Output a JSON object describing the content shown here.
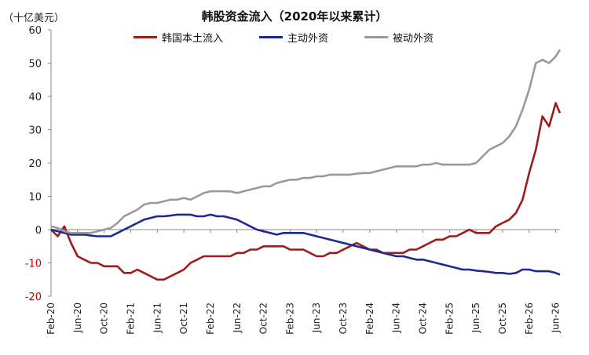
{
  "chart_data": {
    "type": "line",
    "title": "韩股资金流入（2020年以来累计）",
    "unit_label": "（十亿美元）",
    "ylim": [
      -20,
      60
    ],
    "yticks": [
      60,
      50,
      40,
      30,
      20,
      10,
      0,
      -10,
      -20
    ],
    "x_tick_labels": [
      "Feb-20",
      "Jun-20",
      "Oct-20",
      "Feb-21",
      "Jun-21",
      "Oct-21",
      "Feb-22",
      "Jun-22",
      "Oct-22",
      "Feb-23",
      "Jun-23",
      "Oct-23",
      "Feb-24",
      "Jun-24",
      "Oct-24",
      "Feb-25",
      "Jun-25",
      "Oct-25",
      "Feb-26",
      "Jun-26"
    ],
    "legend_position": "top",
    "grid": false,
    "series": [
      {
        "name": "韩国本土流入",
        "color": "#9e1b1b",
        "points": [
          [
            "2020-02",
            0
          ],
          [
            "2020-03",
            -2
          ],
          [
            "2020-04",
            1
          ],
          [
            "2020-05",
            -4
          ],
          [
            "2020-06",
            -8
          ],
          [
            "2020-07",
            -9
          ],
          [
            "2020-08",
            -10
          ],
          [
            "2020-09",
            -10
          ],
          [
            "2020-10",
            -11
          ],
          [
            "2020-11",
            -11
          ],
          [
            "2020-12",
            -11
          ],
          [
            "2021-01",
            -13
          ],
          [
            "2021-02",
            -13
          ],
          [
            "2021-03",
            -12
          ],
          [
            "2021-04",
            -13
          ],
          [
            "2021-05",
            -14
          ],
          [
            "2021-06",
            -15
          ],
          [
            "2021-07",
            -15
          ],
          [
            "2021-08",
            -14
          ],
          [
            "2021-09",
            -13
          ],
          [
            "2021-10",
            -12
          ],
          [
            "2021-11",
            -10
          ],
          [
            "2021-12",
            -9
          ],
          [
            "2022-01",
            -8
          ],
          [
            "2022-02",
            -8
          ],
          [
            "2022-03",
            -8
          ],
          [
            "2022-04",
            -8
          ],
          [
            "2022-05",
            -8
          ],
          [
            "2022-06",
            -7
          ],
          [
            "2022-07",
            -7
          ],
          [
            "2022-08",
            -6
          ],
          [
            "2022-09",
            -6
          ],
          [
            "2022-10",
            -5
          ],
          [
            "2022-11",
            -5
          ],
          [
            "2022-12",
            -5
          ],
          [
            "2023-01",
            -5
          ],
          [
            "2023-02",
            -6
          ],
          [
            "2023-03",
            -6
          ],
          [
            "2023-04",
            -6
          ],
          [
            "2023-05",
            -7
          ],
          [
            "2023-06",
            -8
          ],
          [
            "2023-07",
            -8
          ],
          [
            "2023-08",
            -7
          ],
          [
            "2023-09",
            -7
          ],
          [
            "2023-10",
            -6
          ],
          [
            "2023-11",
            -5
          ],
          [
            "2023-12",
            -4
          ],
          [
            "2024-01",
            -5
          ],
          [
            "2024-02",
            -6
          ],
          [
            "2024-03",
            -6
          ],
          [
            "2024-04",
            -7
          ],
          [
            "2024-05",
            -7
          ],
          [
            "2024-06",
            -7
          ],
          [
            "2024-07",
            -7
          ],
          [
            "2024-08",
            -6
          ],
          [
            "2024-09",
            -6
          ],
          [
            "2024-10",
            -5
          ],
          [
            "2024-11",
            -4
          ],
          [
            "2024-12",
            -3
          ],
          [
            "2025-01",
            -3
          ],
          [
            "2025-02",
            -2
          ],
          [
            "2025-03",
            -2
          ],
          [
            "2025-04",
            -1
          ],
          [
            "2025-05",
            0
          ],
          [
            "2025-06",
            -1
          ],
          [
            "2025-07",
            -1
          ],
          [
            "2025-08",
            -1
          ],
          [
            "2025-09",
            1
          ],
          [
            "2025-10",
            2
          ],
          [
            "2025-11",
            3
          ],
          [
            "2025-12",
            5
          ],
          [
            "2026-01",
            9
          ],
          [
            "2026-02",
            17
          ],
          [
            "2026-03",
            24
          ],
          [
            "2026-04",
            34
          ],
          [
            "2026-05",
            31
          ],
          [
            "2026-06",
            38
          ],
          [
            "2026-06-20",
            35
          ]
        ]
      },
      {
        "name": "主动外资",
        "color": "#1c2a8f",
        "points": [
          [
            "2020-02",
            0
          ],
          [
            "2020-03",
            -0.5
          ],
          [
            "2020-04",
            -1
          ],
          [
            "2020-05",
            -1.5
          ],
          [
            "2020-06",
            -1.5
          ],
          [
            "2020-07",
            -1.5
          ],
          [
            "2020-08",
            -1.8
          ],
          [
            "2020-09",
            -2
          ],
          [
            "2020-10",
            -2
          ],
          [
            "2020-11",
            -2
          ],
          [
            "2020-12",
            -1
          ],
          [
            "2021-01",
            0
          ],
          [
            "2021-02",
            1
          ],
          [
            "2021-03",
            2
          ],
          [
            "2021-04",
            3
          ],
          [
            "2021-05",
            3.5
          ],
          [
            "2021-06",
            4
          ],
          [
            "2021-07",
            4
          ],
          [
            "2021-08",
            4.2
          ],
          [
            "2021-09",
            4.5
          ],
          [
            "2021-10",
            4.5
          ],
          [
            "2021-11",
            4.5
          ],
          [
            "2021-12",
            4
          ],
          [
            "2022-01",
            4
          ],
          [
            "2022-02",
            4.5
          ],
          [
            "2022-03",
            4
          ],
          [
            "2022-04",
            4
          ],
          [
            "2022-05",
            3.5
          ],
          [
            "2022-06",
            3
          ],
          [
            "2022-07",
            2
          ],
          [
            "2022-08",
            1
          ],
          [
            "2022-09",
            0
          ],
          [
            "2022-10",
            -0.5
          ],
          [
            "2022-11",
            -1
          ],
          [
            "2022-12",
            -1.5
          ],
          [
            "2023-01",
            -1
          ],
          [
            "2023-02",
            -1
          ],
          [
            "2023-03",
            -1
          ],
          [
            "2023-04",
            -1
          ],
          [
            "2023-05",
            -1.5
          ],
          [
            "2023-06",
            -2
          ],
          [
            "2023-07",
            -2.5
          ],
          [
            "2023-08",
            -3
          ],
          [
            "2023-09",
            -3.5
          ],
          [
            "2023-10",
            -4
          ],
          [
            "2023-11",
            -4.5
          ],
          [
            "2023-12",
            -5
          ],
          [
            "2024-01",
            -5.5
          ],
          [
            "2024-02",
            -6
          ],
          [
            "2024-03",
            -6.5
          ],
          [
            "2024-04",
            -7
          ],
          [
            "2024-05",
            -7.5
          ],
          [
            "2024-06",
            -8
          ],
          [
            "2024-07",
            -8
          ],
          [
            "2024-08",
            -8.5
          ],
          [
            "2024-09",
            -9
          ],
          [
            "2024-10",
            -9
          ],
          [
            "2024-11",
            -9.5
          ],
          [
            "2024-12",
            -10
          ],
          [
            "2025-01",
            -10.5
          ],
          [
            "2025-02",
            -11
          ],
          [
            "2025-03",
            -11.5
          ],
          [
            "2025-04",
            -12
          ],
          [
            "2025-05",
            -12
          ],
          [
            "2025-06",
            -12.3
          ],
          [
            "2025-07",
            -12.5
          ],
          [
            "2025-08",
            -12.7
          ],
          [
            "2025-09",
            -13
          ],
          [
            "2025-10",
            -13
          ],
          [
            "2025-11",
            -13.3
          ],
          [
            "2025-12",
            -13
          ],
          [
            "2026-01",
            -12
          ],
          [
            "2026-02",
            -12
          ],
          [
            "2026-03",
            -12.5
          ],
          [
            "2026-04",
            -12.5
          ],
          [
            "2026-05",
            -12.5
          ],
          [
            "2026-06",
            -13
          ],
          [
            "2026-06-20",
            -13.5
          ]
        ]
      },
      {
        "name": "被动外资",
        "color": "#999999",
        "points": [
          [
            "2020-02",
            1
          ],
          [
            "2020-03",
            0.5
          ],
          [
            "2020-04",
            -0.5
          ],
          [
            "2020-05",
            -1
          ],
          [
            "2020-06",
            -1
          ],
          [
            "2020-07",
            -1
          ],
          [
            "2020-08",
            -1
          ],
          [
            "2020-09",
            -0.5
          ],
          [
            "2020-10",
            0
          ],
          [
            "2020-11",
            0.5
          ],
          [
            "2020-12",
            2
          ],
          [
            "2021-01",
            4
          ],
          [
            "2021-02",
            5
          ],
          [
            "2021-03",
            6
          ],
          [
            "2021-04",
            7.5
          ],
          [
            "2021-05",
            8
          ],
          [
            "2021-06",
            8
          ],
          [
            "2021-07",
            8.5
          ],
          [
            "2021-08",
            9
          ],
          [
            "2021-09",
            9
          ],
          [
            "2021-10",
            9.5
          ],
          [
            "2021-11",
            9
          ],
          [
            "2021-12",
            10
          ],
          [
            "2022-01",
            11
          ],
          [
            "2022-02",
            11.5
          ],
          [
            "2022-03",
            11.5
          ],
          [
            "2022-04",
            11.5
          ],
          [
            "2022-05",
            11.5
          ],
          [
            "2022-06",
            11
          ],
          [
            "2022-07",
            11.5
          ],
          [
            "2022-08",
            12
          ],
          [
            "2022-09",
            12.5
          ],
          [
            "2022-10",
            13
          ],
          [
            "2022-11",
            13
          ],
          [
            "2022-12",
            14
          ],
          [
            "2023-01",
            14.5
          ],
          [
            "2023-02",
            15
          ],
          [
            "2023-03",
            15
          ],
          [
            "2023-04",
            15.5
          ],
          [
            "2023-05",
            15.5
          ],
          [
            "2023-06",
            16
          ],
          [
            "2023-07",
            16
          ],
          [
            "2023-08",
            16.5
          ],
          [
            "2023-09",
            16.5
          ],
          [
            "2023-10",
            16.5
          ],
          [
            "2023-11",
            16.5
          ],
          [
            "2023-12",
            16.8
          ],
          [
            "2024-01",
            17
          ],
          [
            "2024-02",
            17
          ],
          [
            "2024-03",
            17.5
          ],
          [
            "2024-04",
            18
          ],
          [
            "2024-05",
            18.5
          ],
          [
            "2024-06",
            19
          ],
          [
            "2024-07",
            19
          ],
          [
            "2024-08",
            19
          ],
          [
            "2024-09",
            19
          ],
          [
            "2024-10",
            19.5
          ],
          [
            "2024-11",
            19.5
          ],
          [
            "2024-12",
            20
          ],
          [
            "2025-01",
            19.5
          ],
          [
            "2025-02",
            19.5
          ],
          [
            "2025-03",
            19.5
          ],
          [
            "2025-04",
            19.5
          ],
          [
            "2025-05",
            19.5
          ],
          [
            "2025-06",
            20
          ],
          [
            "2025-07",
            22
          ],
          [
            "2025-08",
            24
          ],
          [
            "2025-09",
            25
          ],
          [
            "2025-10",
            26
          ],
          [
            "2025-11",
            28
          ],
          [
            "2025-12",
            31
          ],
          [
            "2026-01",
            36
          ],
          [
            "2026-02",
            42
          ],
          [
            "2026-03",
            50
          ],
          [
            "2026-04",
            51
          ],
          [
            "2026-05",
            50
          ],
          [
            "2026-06",
            52
          ],
          [
            "2026-06-20",
            54
          ]
        ]
      }
    ]
  }
}
